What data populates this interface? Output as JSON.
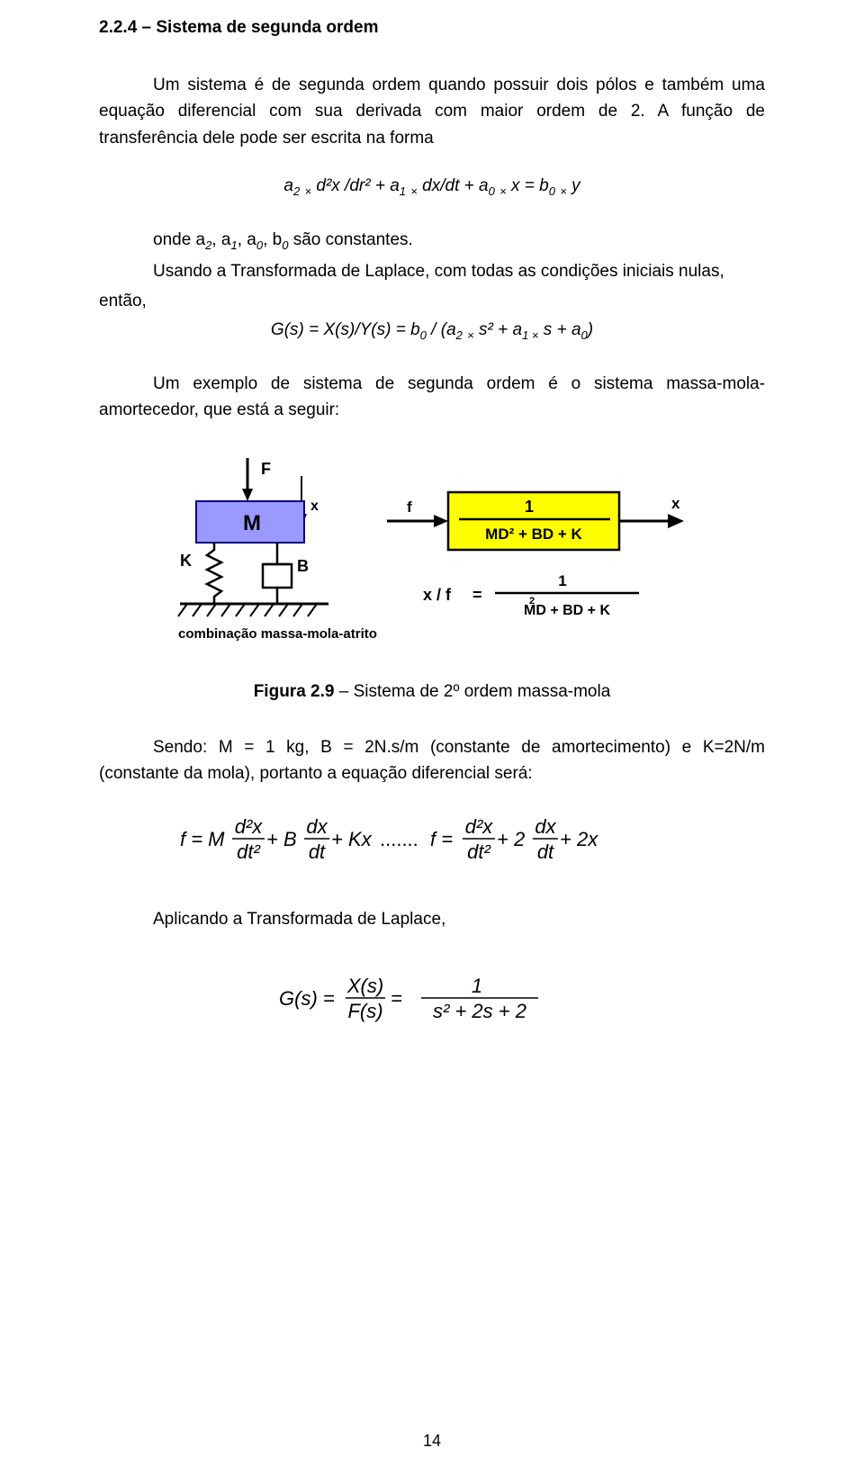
{
  "heading": "2.2.4 – Sistema de segunda ordem",
  "para1": "Um sistema é de segunda ordem quando possuir dois pólos e também uma equação diferencial com sua derivada com maior ordem de 2. A função de transferência dele pode ser escrita na forma",
  "eq1_html": "a<span class='sub'>2</span> <span class='sub'>×</span> d²x /dr² + a<span class='sub'>1</span> <span class='sub'>×</span> dx/dt + a<span class='sub'>0</span> <span class='sub'>×</span> x = b<span class='sub'>0</span> <span class='sub'>×</span> y",
  "line_onde_html": "onde a<span class='sub'>2</span>, a<span class='sub'>1</span>, a<span class='sub'>0</span>, b<span class='sub'>0</span> são constantes.",
  "line_usando": "Usando a Transformada de Laplace, com todas as condições iniciais nulas,",
  "line_entao": "então,",
  "eq2_html": "G(s) = X(s)/Y(s) = b<span class='sub'>0</span> / (a<span class='sub'>2</span> <span class='sub'>×</span> s² + a<span class='sub'>1 ×</span> s + a<span class='sub'>0</span>)",
  "para2": "Um exemplo de sistema de segunda ordem é o sistema massa-mola-amortecedor, que está a seguir:",
  "figure": {
    "caption_bold": "Figura 2.9",
    "caption_rest": " – Sistema de 2º ordem massa-mola",
    "colors": {
      "mass_fill": "#9999ff",
      "mass_stroke": "#000080",
      "tf_box_fill": "#ffff00",
      "tf_box_stroke": "#000000",
      "line": "#000000",
      "bg": "#ffffff"
    },
    "labels": {
      "F": "F",
      "M": "M",
      "K": "K",
      "B": "B",
      "x_small": "x",
      "f_small": "f",
      "x_out": "x",
      "tf_num": "1",
      "tf_den": "MD² + BD + K",
      "ratio_lhs": "x / f",
      "eq": "=",
      "ratio_num": "1",
      "ratio_den": "MD  + BD + K",
      "ratio_exp": "2",
      "subtitle": "combinação massa-mola-atrito"
    }
  },
  "para3": "Sendo: M = 1 kg, B = 2N.s/m (constante de amortecimento) e K=2N/m (constante da mola), portanto a equação diferencial será:",
  "eq3": {
    "text_before": "f = M",
    "frac1_num": "d²x",
    "frac1_den": "dt²",
    "plus_B": " + B",
    "frac2_num": "dx",
    "frac2_den": "dt",
    "plus_Kx": " + Kx",
    "dots": ".......",
    "text_mid": "f = ",
    "frac3_num": "d²x",
    "frac3_den": "dt²",
    "plus_2": " + 2",
    "frac4_num": "dx",
    "frac4_den": "dt",
    "plus_2x": " + 2x"
  },
  "para4": "Aplicando a Transformada de Laplace,",
  "eq4": {
    "lhs": "G(s) = ",
    "f1_num": "X(s)",
    "f1_den": "F(s)",
    "eq": " = ",
    "f2_num": "1",
    "f2_den": "s² + 2s + 2"
  },
  "pagenum": "14"
}
